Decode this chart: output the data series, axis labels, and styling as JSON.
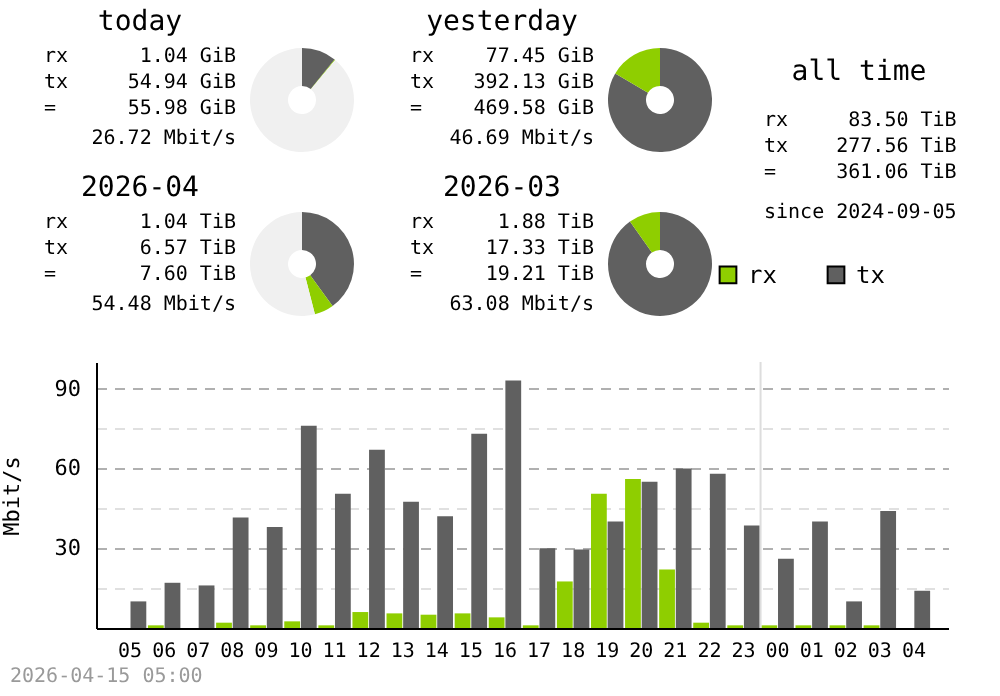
{
  "chart_data": [
    {
      "type": "donut",
      "title": "today",
      "categories": [
        null,
        null,
        null
      ],
      "values": [
        10.8,
        0.2,
        89
      ],
      "colors": [
        "#606060",
        "#8fce00",
        "#f0f0f0"
      ],
      "annotations": [
        "rx",
        "1.04 GiB",
        "tx",
        "54.94 GiB",
        "=",
        "55.98 GiB",
        "26.72 Mbit/s"
      ]
    },
    {
      "type": "donut",
      "title": "yesterday",
      "categories": [
        null,
        null,
        null
      ],
      "values": [
        83.5,
        16.5,
        0
      ],
      "colors": [
        "#606060",
        "#8fce00",
        "#f0f0f0"
      ],
      "annotations": [
        "rx",
        "77.45 GiB",
        "tx",
        "392.13 GiB",
        "=",
        "469.58 GiB",
        "46.69 Mbit/s"
      ]
    },
    {
      "type": "other",
      "title": "all time",
      "annotations": [
        "rx",
        "83.50 TiB",
        "tx",
        "277.56 TiB",
        "=",
        "361.06 TiB",
        "since 2024-09-05"
      ]
    },
    {
      "type": "donut",
      "title": "2026-04",
      "categories": [
        null,
        null,
        null
      ],
      "values": [
        40,
        6,
        54
      ],
      "colors": [
        "#606060",
        "#8fce00",
        "#f0f0f0"
      ],
      "annotations": [
        "rx",
        "1.04 TiB",
        "tx",
        "6.57 TiB",
        "=",
        "7.60 TiB",
        "54.48 Mbit/s"
      ]
    },
    {
      "type": "donut",
      "title": "2026-03",
      "categories": [
        null,
        null,
        null
      ],
      "values": [
        90.2,
        9.8,
        0
      ],
      "colors": [
        "#606060",
        "#8fce00",
        "#f0f0f0"
      ],
      "annotations": [
        "rx",
        "1.88 TiB",
        "tx",
        "17.33 TiB",
        "=",
        "19.21 TiB",
        "63.08 Mbit/s"
      ]
    },
    {
      "type": "bar",
      "ylabel": "Mbit/s",
      "categories": [
        "05",
        "06",
        "07",
        "08",
        "09",
        "10",
        "11",
        "12",
        "13",
        "14",
        "15",
        "16",
        "17",
        "18",
        "19",
        "20",
        "21",
        "22",
        "23",
        "00",
        "01",
        "02",
        "03",
        "04"
      ],
      "series": [
        {
          "name": "rx",
          "color": "#8fce00",
          "values": [
            0,
            1,
            0,
            2,
            1,
            2.5,
            1,
            6,
            5.5,
            5,
            5.5,
            4,
            1,
            17.5,
            50.5,
            56,
            22,
            2,
            1,
            1,
            1,
            1,
            1,
            0
          ]
        },
        {
          "name": "tx",
          "color": "#606060",
          "values": [
            10,
            17,
            16,
            41.5,
            38,
            76,
            50.5,
            67,
            47.5,
            42,
            73,
            93,
            30,
            29.5,
            40,
            55,
            60,
            58,
            38.5,
            26,
            40,
            10,
            44,
            14
          ]
        }
      ],
      "ylim": [
        0,
        100
      ],
      "yticks": [
        {
          "value": 15,
          "label": null
        },
        30,
        {
          "value": 45,
          "label": null
        },
        60,
        {
          "value": 75,
          "label": null
        },
        90
      ],
      "grid": "y",
      "legend": "top right",
      "ref_lines": [
        {
          "axis": "x",
          "value": "00",
          "color": "#dddddd"
        }
      ],
      "annotations": [
        "2026-04-15 05:00"
      ]
    }
  ]
}
